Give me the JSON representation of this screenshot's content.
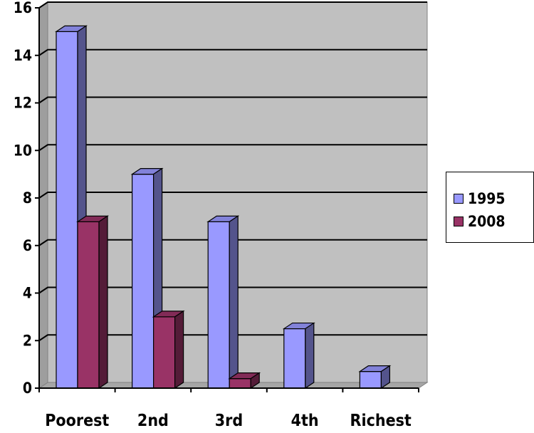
{
  "chart_data": {
    "type": "bar",
    "categories": [
      "Poorest",
      "2nd",
      "3rd",
      "4th",
      "Richest"
    ],
    "series": [
      {
        "name": "1995",
        "values": [
          15,
          9,
          7,
          2.5,
          0.7
        ]
      },
      {
        "name": "2008",
        "values": [
          7,
          3,
          0.4,
          0,
          0
        ]
      }
    ],
    "ylim": [
      0,
      16
    ],
    "yticks": [
      0,
      2,
      4,
      6,
      8,
      10,
      12,
      14,
      16
    ],
    "grid": true,
    "legend_position": "right"
  },
  "colors": {
    "series_1995": "#9999ff",
    "series_2008": "#993366",
    "plot_background": "#c0c0c0"
  }
}
